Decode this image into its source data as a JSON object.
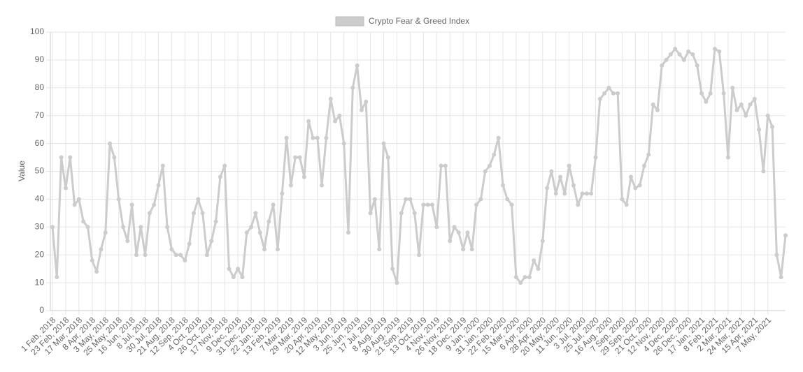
{
  "chart_data": {
    "type": "line",
    "series": [
      {
        "name": "Crypto Fear & Greed Index",
        "color": "#cccccc",
        "values": [
          30,
          12,
          55,
          44,
          55,
          38,
          40,
          32,
          30,
          18,
          14,
          22,
          28,
          60,
          55,
          40,
          30,
          25,
          38,
          20,
          30,
          20,
          35,
          38,
          45,
          52,
          30,
          22,
          20,
          20,
          18,
          24,
          35,
          40,
          35,
          20,
          25,
          32,
          48,
          52,
          15,
          12,
          15,
          12,
          28,
          30,
          35,
          28,
          22,
          32,
          38,
          22,
          42,
          62,
          45,
          55,
          55,
          48,
          68,
          62,
          62,
          45,
          62,
          76,
          68,
          70,
          60,
          28,
          80,
          88,
          72,
          75,
          35,
          40,
          22,
          60,
          55,
          15,
          10,
          35,
          40,
          40,
          35,
          20,
          38,
          38,
          38,
          30,
          52,
          52,
          25,
          30,
          28,
          22,
          28,
          22,
          38,
          40,
          50,
          52,
          56,
          62,
          45,
          40,
          38,
          12,
          10,
          12,
          12,
          18,
          15,
          25,
          44,
          50,
          42,
          48,
          42,
          52,
          45,
          38,
          42,
          42,
          42,
          55,
          76,
          78,
          80,
          78,
          78,
          40,
          38,
          48,
          44,
          45,
          52,
          56,
          74,
          72,
          88,
          90,
          92,
          94,
          92,
          90,
          93,
          92,
          88,
          78,
          75,
          78,
          94,
          93,
          78,
          55,
          80,
          72,
          74,
          70,
          74,
          76,
          65,
          50,
          70,
          66,
          20,
          12,
          27
        ]
      }
    ],
    "categories": [
      "1 Feb, 2018",
      null,
      null,
      "23 Feb, 2018",
      null,
      null,
      "17 Mar, 2018",
      null,
      null,
      "8 Apr, 2018",
      null,
      null,
      "3 May, 2018",
      null,
      null,
      "25 May, 2018",
      null,
      null,
      "16 Jun, 2018",
      null,
      null,
      "8 Jul, 2018",
      null,
      null,
      "30 Jul, 2018",
      null,
      null,
      "21 Aug, 2018",
      null,
      null,
      "12 Sep, 2018",
      null,
      null,
      "4 Oct, 2018",
      null,
      null,
      "26 Oct, 2018",
      null,
      null,
      "17 Nov, 2018",
      null,
      null,
      "9 Dec, 2018",
      null,
      null,
      "31 Dec, 2018",
      null,
      null,
      "22 Jan, 2019",
      null,
      null,
      "13 Feb, 2019",
      null,
      null,
      "7 Mar, 2019",
      null,
      null,
      "29 Mar, 2019",
      null,
      null,
      "20 Apr, 2019",
      null,
      null,
      "12 May, 2019",
      null,
      null,
      "3 Jun, 2019",
      null,
      null,
      "25 Jun, 2019",
      null,
      null,
      "17 Jul, 2019",
      null,
      null,
      "8 Aug, 2019",
      null,
      null,
      "30 Aug, 2019",
      null,
      null,
      "21 Sep, 2019",
      null,
      null,
      "13 Oct, 2019",
      null,
      null,
      "4 Nov, 2019",
      null,
      null,
      "26 Nov, 2019",
      null,
      null,
      "18 Dec, 2019",
      null,
      null,
      "9 Jan, 2020",
      null,
      null,
      "31 Jan, 2020",
      null,
      null,
      "22 Feb, 2020",
      null,
      null,
      "15 Mar, 2020",
      null,
      null,
      "6 Apr, 2020",
      null,
      null,
      "28 Apr, 2020",
      null,
      null,
      "20 May, 2020",
      null,
      null,
      "11 Jun, 2020",
      null,
      null,
      "3 Jul, 2020",
      null,
      null,
      "25 Jul, 2020",
      null,
      null,
      "16 Aug, 2020",
      null,
      null,
      "7 Sep, 2020",
      null,
      null,
      "29 Sep, 2020",
      null,
      null,
      "21 Oct, 2020",
      null,
      null,
      "12 Nov, 2020",
      null,
      null,
      "4 Dec, 2020",
      null,
      null,
      "26 Dec, 2020",
      null,
      null,
      "17 Jan, 2021",
      null,
      null,
      "8 Feb, 2021",
      null,
      null,
      "2 Mar, 2021",
      null,
      null,
      "24 Mar, 2021",
      null,
      null,
      "15 Apr, 2021",
      null,
      null,
      "7 May, 2021",
      null,
      null,
      null,
      null
    ],
    "y_label": "Value",
    "ylim": [
      0,
      100
    ],
    "yticks": [
      0,
      10,
      20,
      30,
      40,
      50,
      60,
      70,
      80,
      90,
      100
    ],
    "grid": true,
    "legend": "top"
  }
}
